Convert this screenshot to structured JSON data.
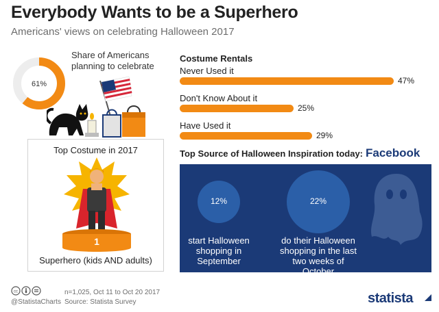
{
  "title": "Everybody Wants to be a Superhero",
  "subtitle": "Americans' views on celebrating Halloween 2017",
  "share": {
    "value_label": "61%",
    "value": 61,
    "text_line1": "Share of Americans",
    "text_line2": "planning to celebrate"
  },
  "costume": {
    "title": "Top Costume in 2017",
    "rank": "1",
    "name": "Superhero (kids AND adults)"
  },
  "rentals": {
    "title": "Costume Rentals"
  },
  "inspiration": {
    "label": "Top Source of Halloween Inspiration today:",
    "source": "Facebook"
  },
  "shopping": [
    {
      "value_label": "12%",
      "caption_lines": [
        "start Halloween",
        "shopping in",
        "September"
      ]
    },
    {
      "value_label": "22%",
      "caption_lines": [
        "do their Halloween",
        "shopping in the last",
        "two weeks of October"
      ]
    }
  ],
  "footer": {
    "handle": "@StatistaCharts",
    "note": "n=1,025, Oct 11 to Oct 20 2017",
    "source": "Source: Statista Survey",
    "brand": "statista"
  },
  "colors": {
    "accent_orange": "#f28a14",
    "navy": "#1b3a77",
    "circle_blue": "#2b5fa8",
    "donut_track": "#ededed"
  },
  "chart_data": [
    {
      "type": "pie",
      "title": "Share of Americans planning to celebrate",
      "values": [
        61,
        39
      ],
      "labels": [
        "61%",
        ""
      ]
    },
    {
      "type": "bar",
      "title": "Costume Rentals",
      "categories": [
        "Never Used it",
        "Don't Know About it",
        "Have Used it"
      ],
      "values": [
        47,
        25,
        29
      ],
      "value_labels": [
        "47%",
        "25%",
        "29%"
      ],
      "xlim": [
        0,
        50
      ],
      "orientation": "horizontal"
    }
  ]
}
